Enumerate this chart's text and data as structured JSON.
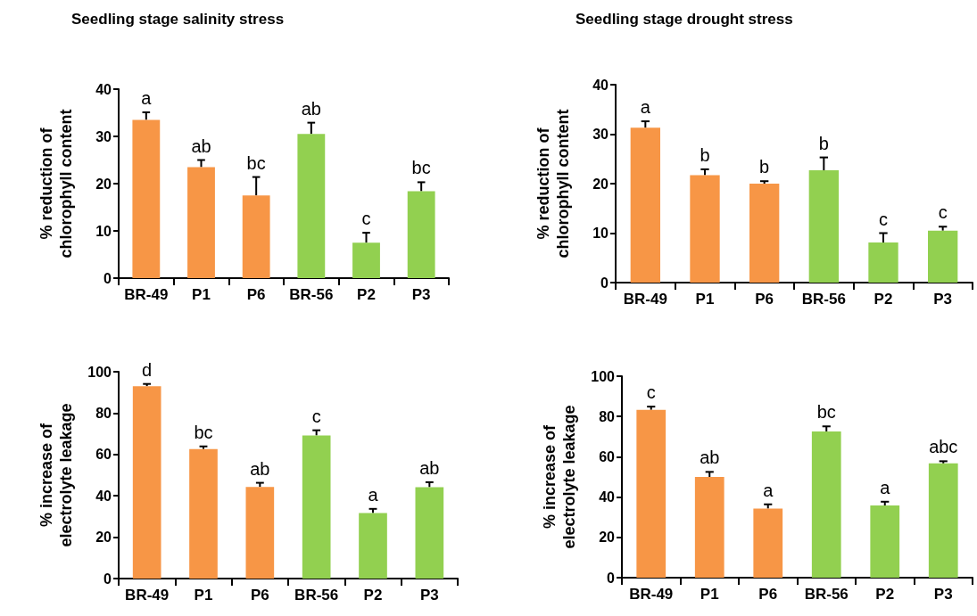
{
  "chart_data": [
    {
      "type": "bar",
      "title": "Seedling stage salinity stress",
      "ylabel": "% reduction of chlorophyll content",
      "categories": [
        "BR-49",
        "P1",
        "P6",
        "BR-56",
        "P2",
        "P3"
      ],
      "values": [
        33.5,
        23.5,
        17.5,
        30.5,
        7.5,
        18.4
      ],
      "errors": [
        [
          33.5,
          35.1
        ],
        [
          23.5,
          25.0
        ],
        [
          17.5,
          21.4
        ],
        [
          30.5,
          32.9
        ],
        [
          7.5,
          9.6
        ],
        [
          18.4,
          20.3
        ]
      ],
      "colors": [
        "#f79646",
        "#f79646",
        "#f79646",
        "#92d050",
        "#92d050",
        "#92d050"
      ],
      "ylim": [
        0,
        40
      ],
      "yticks": [
        0,
        10,
        20,
        30,
        40
      ],
      "annotations": [
        {
          "text": "a",
          "x": "BR-49",
          "y": 35.1
        },
        {
          "text": "ab",
          "x": "P1",
          "y": 25.0
        },
        {
          "text": "bc",
          "x": "P6",
          "y": 21.4
        },
        {
          "text": "ab",
          "x": "BR-56",
          "y": 32.9
        },
        {
          "text": "c",
          "x": "P2",
          "y": 9.6
        },
        {
          "text": "bc",
          "x": "P3",
          "y": 20.3
        }
      ]
    },
    {
      "type": "bar",
      "title": "Seedling stage drought stress",
      "ylabel": "% reduction of chlorophyll content",
      "categories": [
        "BR-49",
        "P1",
        "P6",
        "BR-56",
        "P2",
        "P3"
      ],
      "values": [
        31.3,
        21.7,
        20.0,
        22.7,
        8.1,
        10.5
      ],
      "errors": [
        [
          31.3,
          32.6
        ],
        [
          21.7,
          22.9
        ],
        [
          20.0,
          20.5
        ],
        [
          22.7,
          25.3
        ],
        [
          8.1,
          10.0
        ],
        [
          10.5,
          11.3
        ]
      ],
      "colors": [
        "#f79646",
        "#f79646",
        "#f79646",
        "#92d050",
        "#92d050",
        "#92d050"
      ],
      "ylim": [
        0,
        40
      ],
      "yticks": [
        0,
        10,
        20,
        30,
        40
      ],
      "annotations": [
        {
          "text": "a",
          "x": "BR-49",
          "y": 32.6
        },
        {
          "text": "b",
          "x": "P1",
          "y": 22.9
        },
        {
          "text": "b",
          "x": "P6",
          "y": 20.5
        },
        {
          "text": "b",
          "x": "BR-56",
          "y": 25.3
        },
        {
          "text": "c",
          "x": "P2",
          "y": 10.0
        },
        {
          "text": "c",
          "x": "P3",
          "y": 11.3
        }
      ]
    },
    {
      "type": "bar",
      "ylabel": "% increase of electrolyte leakage",
      "categories": [
        "BR-49",
        "P1",
        "P6",
        "BR-56",
        "P2",
        "P3"
      ],
      "values": [
        93.0,
        62.6,
        44.3,
        69.2,
        31.7,
        44.2
      ],
      "errors": [
        [
          93.0,
          94.1
        ],
        [
          62.6,
          63.9
        ],
        [
          44.3,
          46.3
        ],
        [
          69.2,
          71.7
        ],
        [
          31.7,
          33.7
        ],
        [
          44.2,
          46.6
        ]
      ],
      "colors": [
        "#f79646",
        "#f79646",
        "#f79646",
        "#92d050",
        "#92d050",
        "#92d050"
      ],
      "ylim": [
        0,
        100
      ],
      "yticks": [
        0,
        20,
        40,
        60,
        80,
        100
      ],
      "annotations": [
        {
          "text": "d",
          "x": "BR-49",
          "y": 94.1
        },
        {
          "text": "bc",
          "x": "P1",
          "y": 63.9
        },
        {
          "text": "ab",
          "x": "P6",
          "y": 46.3
        },
        {
          "text": "c",
          "x": "BR-56",
          "y": 71.7
        },
        {
          "text": "a",
          "x": "P2",
          "y": 33.7
        },
        {
          "text": "ab",
          "x": "P3",
          "y": 46.6
        }
      ]
    },
    {
      "type": "bar",
      "ylabel": "% increase of electrolyte leakage",
      "categories": [
        "BR-49",
        "P1",
        "P6",
        "BR-56",
        "P2",
        "P3"
      ],
      "values": [
        83.3,
        50.0,
        34.3,
        72.6,
        35.8,
        56.7
      ],
      "errors": [
        [
          83.3,
          84.9
        ],
        [
          50.0,
          52.5
        ],
        [
          34.3,
          36.4
        ],
        [
          72.6,
          75.1
        ],
        [
          35.8,
          37.7
        ],
        [
          56.7,
          57.8
        ]
      ],
      "colors": [
        "#f79646",
        "#f79646",
        "#f79646",
        "#92d050",
        "#92d050",
        "#92d050"
      ],
      "ylim": [
        0,
        100
      ],
      "yticks": [
        0,
        20,
        40,
        60,
        80,
        100
      ],
      "annotations": [
        {
          "text": "c",
          "x": "BR-49",
          "y": 84.9
        },
        {
          "text": "ab",
          "x": "P1",
          "y": 52.5
        },
        {
          "text": "a",
          "x": "P6",
          "y": 36.4
        },
        {
          "text": "bc",
          "x": "BR-56",
          "y": 75.1
        },
        {
          "text": "a",
          "x": "P2",
          "y": 37.7
        },
        {
          "text": "abc",
          "x": "P3",
          "y": 57.8
        }
      ]
    }
  ]
}
